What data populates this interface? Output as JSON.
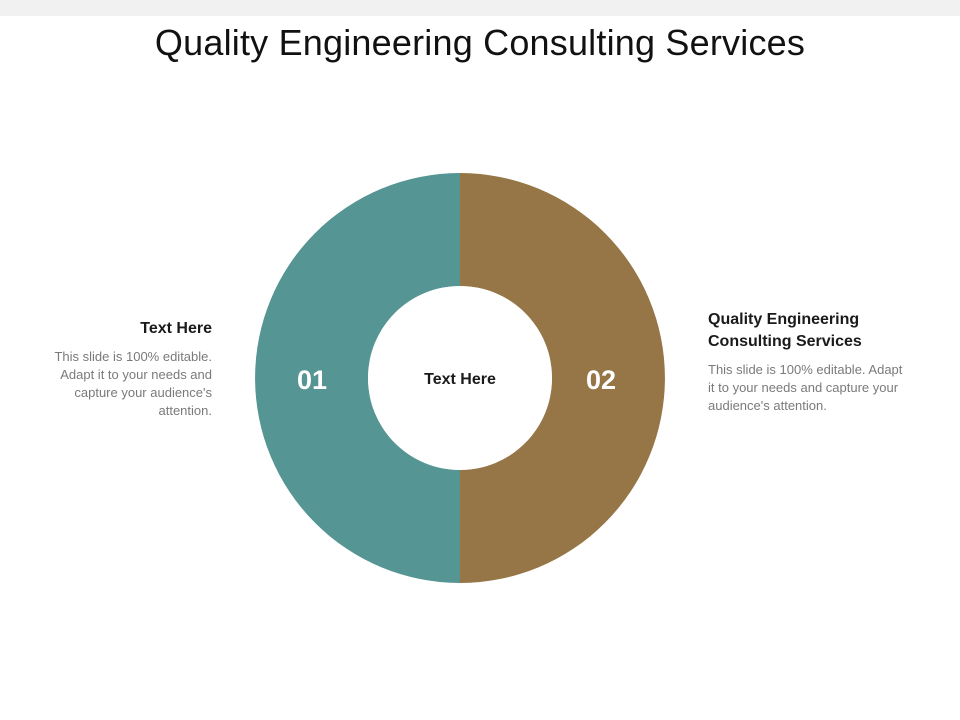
{
  "title": "Quality Engineering Consulting Services",
  "colors": {
    "segment_left": "#559593",
    "segment_right": "#967646"
  },
  "diagram": {
    "center_label": "Text Here",
    "segments": [
      {
        "number": "01"
      },
      {
        "number": "02"
      }
    ]
  },
  "left_block": {
    "heading": "Text Here",
    "body": "This slide is 100% editable. Adapt it to your needs and capture your audience's attention."
  },
  "right_block": {
    "heading": "Quality Engineering Consulting Services",
    "body": "This slide is 100% editable. Adapt it to your needs and capture your audience's attention."
  }
}
